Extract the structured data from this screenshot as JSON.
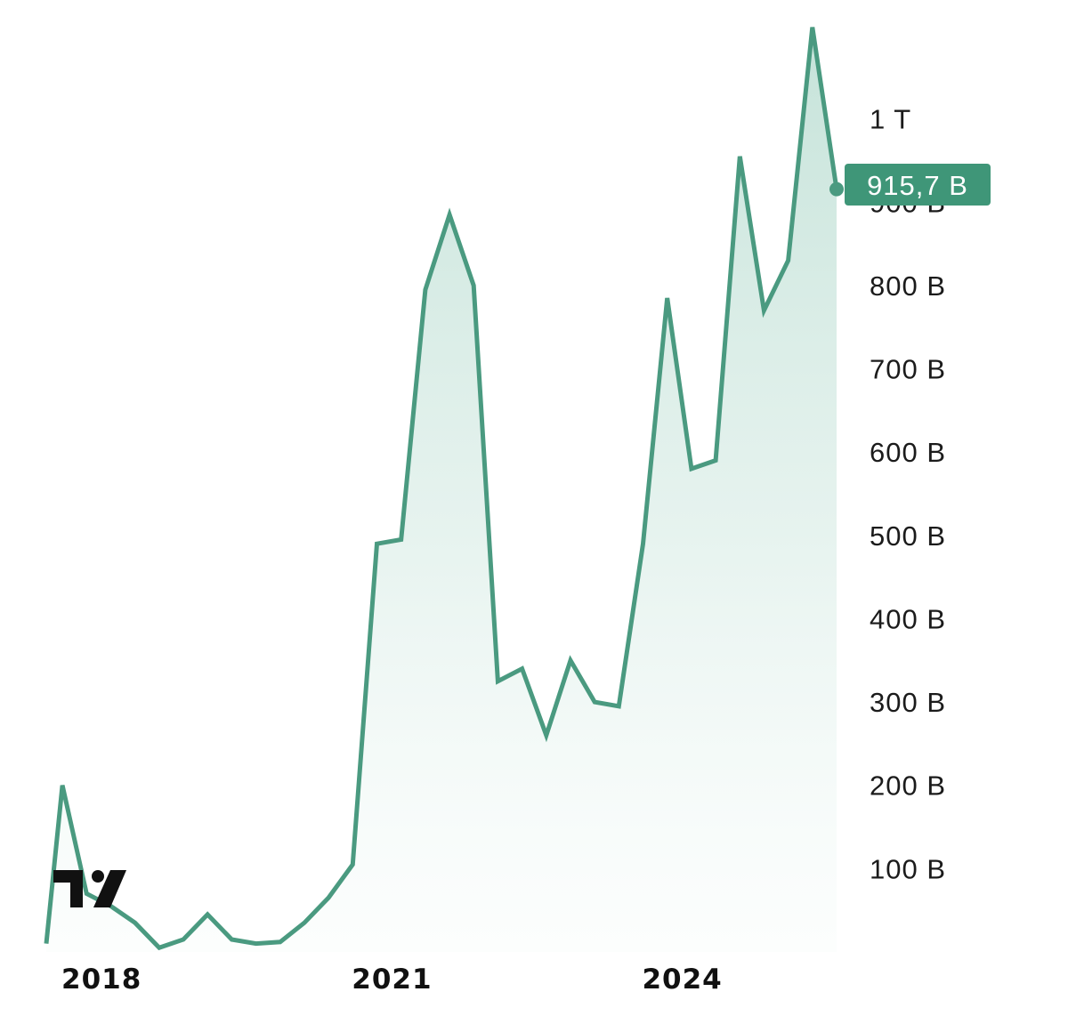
{
  "chart_data": {
    "type": "area",
    "title": "",
    "xlabel": "",
    "ylabel": "",
    "x_tick_labels": [
      "2018",
      "2021",
      "2024"
    ],
    "y_tick_labels": [
      "1 T",
      "900 B",
      "800 B",
      "700 B",
      "600 B",
      "500 B",
      "400 B",
      "300 B",
      "200 B",
      "100 B"
    ],
    "ylim": [
      0,
      1100
    ],
    "x_range": [
      "2017-10",
      "2025-12"
    ],
    "grid": false,
    "legend": "none",
    "last_value_label": "915,7 B",
    "colors": {
      "line": "#4a9a80",
      "fill_top": "#9fd0c0",
      "label_bg": "#3f9678",
      "logo": "#111111"
    },
    "logo_icon": "tradingview-logo-icon",
    "series": [
      {
        "x": [
          "2017-10",
          "2017-12",
          "2018-03",
          "2018-06",
          "2018-09",
          "2018-12",
          "2019-03",
          "2019-06",
          "2019-09",
          "2019-12",
          "2020-03",
          "2020-06",
          "2020-09",
          "2020-12",
          "2021-03",
          "2021-06",
          "2021-09",
          "2021-12",
          "2022-03",
          "2022-06",
          "2022-09",
          "2022-12",
          "2023-03",
          "2023-06",
          "2023-09",
          "2023-12",
          "2024-03",
          "2024-06",
          "2024-09",
          "2024-12",
          "2025-03",
          "2025-06",
          "2025-09",
          "2025-12"
        ],
        "values": [
          10,
          200,
          70,
          55,
          35,
          5,
          15,
          45,
          15,
          10,
          12,
          35,
          65,
          105,
          490,
          495,
          795,
          885,
          800,
          325,
          340,
          260,
          350,
          300,
          295,
          490,
          785,
          580,
          590,
          955,
          770,
          830,
          1110,
          915.7
        ]
      }
    ]
  }
}
